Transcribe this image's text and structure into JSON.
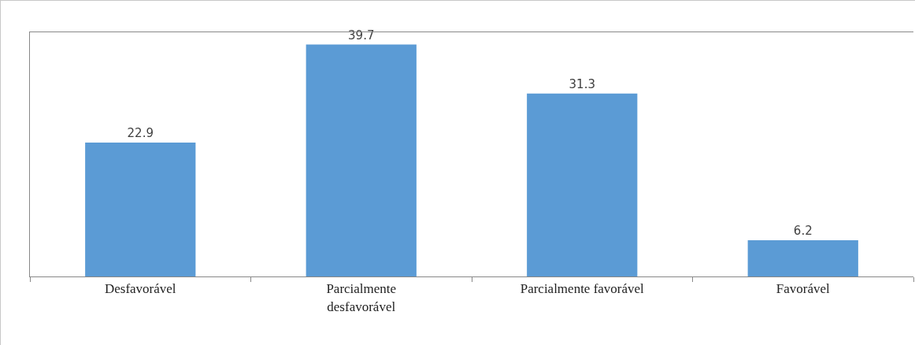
{
  "chart_data": {
    "type": "bar",
    "categories": [
      "Desfavorável",
      "Parcialmente desfavorável",
      "Parcialmente favorável",
      "Favorável"
    ],
    "values": [
      22.9,
      39.7,
      31.3,
      6.2
    ],
    "color": "#5b9bd5",
    "data_labels": true,
    "grid": false,
    "legend": false
  }
}
